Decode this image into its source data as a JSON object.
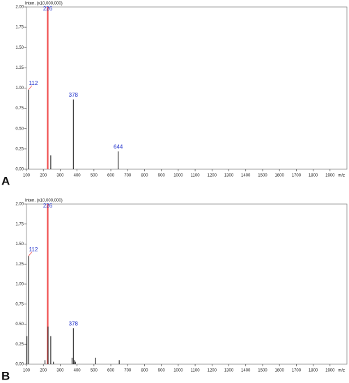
{
  "chart_data": [
    {
      "type": "stem",
      "panel": "A",
      "y_label": "Inten. (x10,000,000)",
      "x_label": "m/z",
      "x": [
        112,
        226,
        244,
        378,
        644
      ],
      "values": [
        0.98,
        2.0,
        0.17,
        0.86,
        0.22
      ],
      "color": "#111111",
      "highlight_color": "#f05050",
      "label_color": "#2233cc",
      "labeled_peaks": [
        112,
        226,
        378,
        644
      ],
      "xlim": [
        100,
        2000
      ],
      "xticks": [
        100,
        200,
        300,
        400,
        500,
        600,
        700,
        800,
        900,
        1000,
        1100,
        1200,
        1300,
        1400,
        1500,
        1600,
        1700,
        1800,
        1900
      ],
      "ylim": [
        0,
        2
      ],
      "yticks": [
        {
          "value": 0,
          "label": "0.00"
        },
        0.25,
        {
          "value": 0.5,
          "label": "0.50"
        },
        0.75,
        {
          "value": 1,
          "label": "1.00"
        },
        1.25,
        {
          "value": 1.5,
          "label": "1.50"
        },
        1.75,
        {
          "value": 2,
          "label": "2.00"
        }
      ]
    },
    {
      "type": "stem",
      "panel": "B",
      "y_label": "Inten. (x10,000,000)",
      "x_label": "m/z",
      "x": [
        103,
        112,
        210,
        226,
        228,
        244,
        260,
        370,
        378,
        385,
        390,
        510,
        650
      ],
      "values": [
        0.35,
        1.35,
        0.05,
        2.0,
        0.47,
        0.35,
        0.03,
        0.08,
        0.45,
        0.05,
        0.03,
        0.08,
        0.05
      ],
      "color": "#111111",
      "highlight_color": "#f05050",
      "label_color": "#2233cc",
      "labeled_peaks": [
        112,
        226,
        378
      ],
      "xlim": [
        100,
        2000
      ],
      "xticks": [
        100,
        200,
        300,
        400,
        500,
        600,
        700,
        800,
        900,
        1000,
        1100,
        1200,
        1300,
        1400,
        1500,
        1600,
        1700,
        1800,
        1900
      ],
      "ylim": [
        0,
        2
      ],
      "yticks": [
        {
          "value": 0,
          "label": "0.00"
        },
        0.25,
        {
          "value": 0.5,
          "label": "0.50"
        },
        0.75,
        {
          "value": 1,
          "label": "1.00"
        },
        1.25,
        {
          "value": 1.5,
          "label": "1.50"
        },
        1.75,
        {
          "value": 2,
          "label": "2.00"
        }
      ]
    }
  ]
}
